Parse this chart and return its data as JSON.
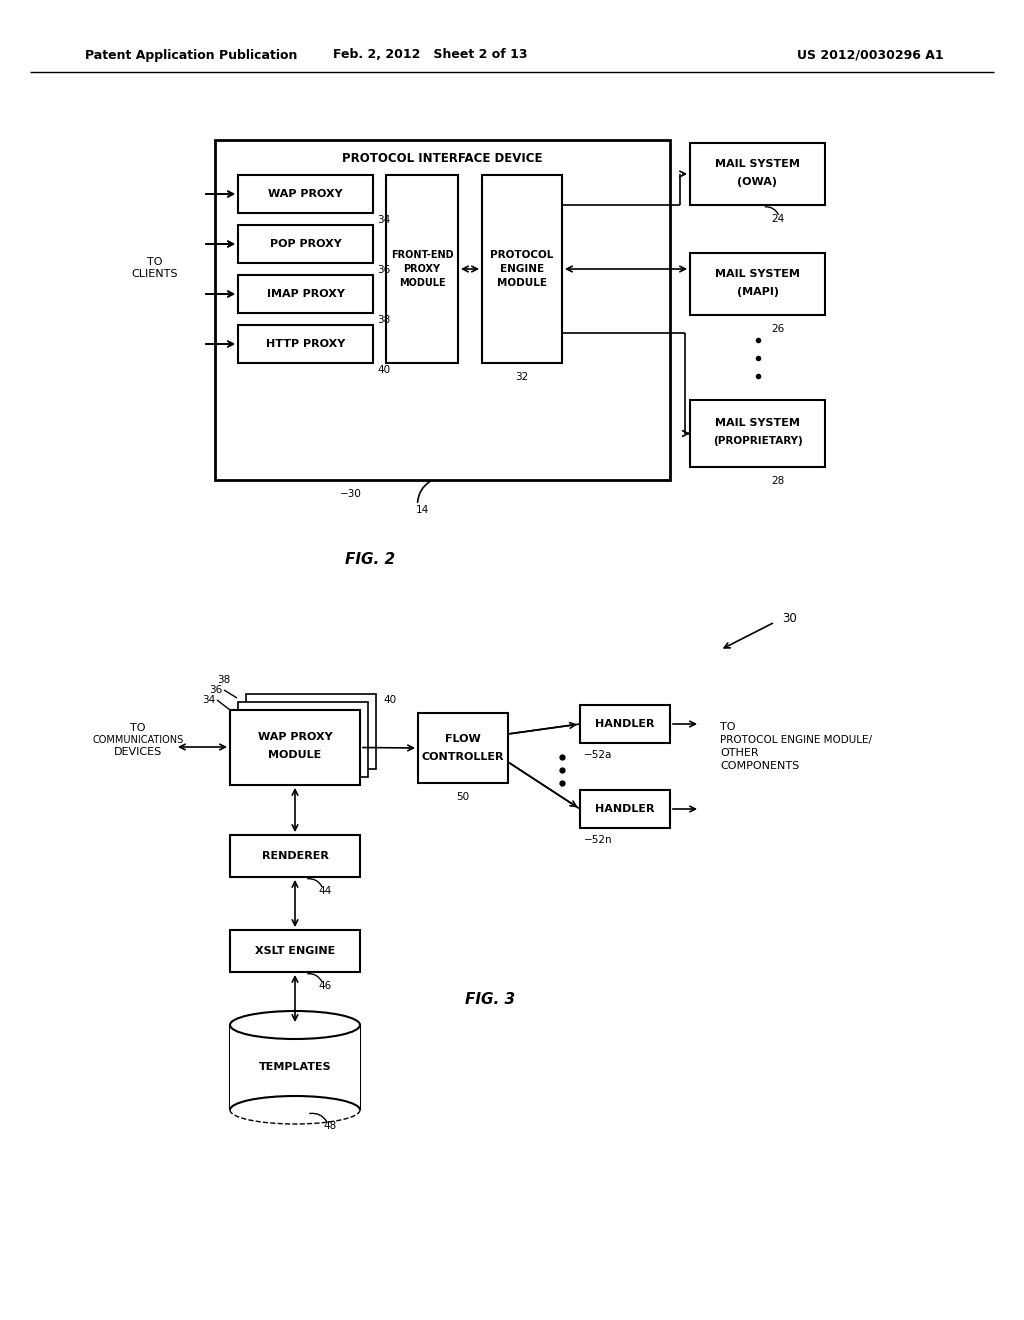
{
  "background_color": "#ffffff",
  "header_left": "Patent Application Publication",
  "header_center": "Feb. 2, 2012   Sheet 2 of 13",
  "header_right": "US 2012/0030296 A1",
  "fig2_label": "FIG. 2",
  "fig3_label": "FIG. 3",
  "line_color": "#000000",
  "text_color": "#000000"
}
